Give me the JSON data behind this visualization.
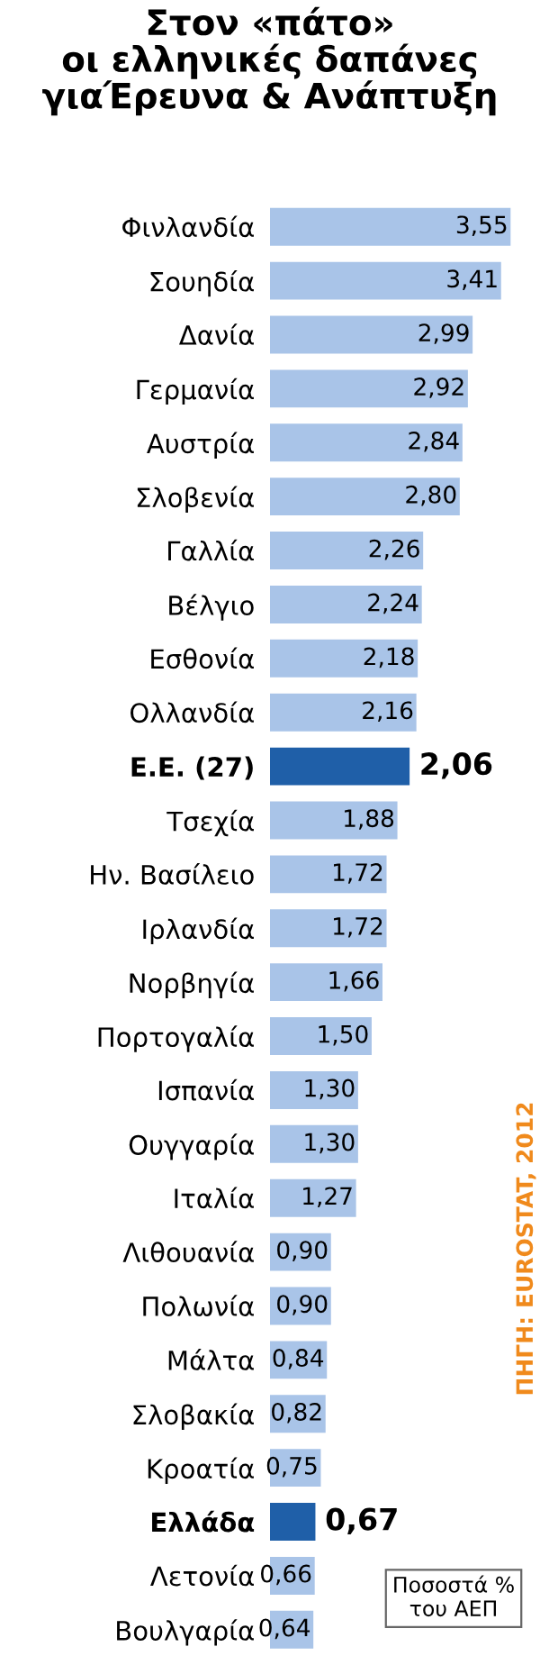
{
  "chart_data": {
    "type": "bar",
    "orientation": "horizontal",
    "title": "Στον «πάτο»\nοι ελληνικές δαπάνες\nγιαΈρευνα & Ανάπτυξη",
    "categories": [
      "Φινλανδία",
      "Σουηδία",
      "Δανία",
      "Γερμανία",
      "Αυστρία",
      "Σλοβενία",
      "Γαλλία",
      "Βέλγιο",
      "Εσθονία",
      "Ολλανδία",
      "Ε.Ε. (27)",
      "Τσεχία",
      "Ην. Βασίλειο",
      "Ιρλανδία",
      "Νορβηγία",
      "Πορτογαλία",
      "Ισπανία",
      "Ουγγαρία",
      "Ιταλία",
      "Λιθουανία",
      "Πολωνία",
      "Μάλτα",
      "Σλοβακία",
      "Κροατία",
      "Ελλάδα",
      "Λετονία",
      "Βουλγαρία"
    ],
    "values": [
      3.55,
      3.41,
      2.99,
      2.92,
      2.84,
      2.8,
      2.26,
      2.24,
      2.18,
      2.16,
      2.06,
      1.88,
      1.72,
      1.72,
      1.66,
      1.5,
      1.3,
      1.3,
      1.27,
      0.9,
      0.9,
      0.84,
      0.82,
      0.75,
      0.67,
      0.66,
      0.64
    ],
    "value_labels": [
      "3,55",
      "3,41",
      "2,99",
      "2,92",
      "2,84",
      "2,80",
      "2,26",
      "2,24",
      "2,18",
      "2,16",
      "2,06",
      "1,88",
      "1,72",
      "1,72",
      "1,66",
      "1,50",
      "1,30",
      "1,30",
      "1,27",
      "0,90",
      "0,90",
      "0,84",
      "0,82",
      "0,75",
      "0,67",
      "0,66",
      "0,64"
    ],
    "colors": [
      "#a9c4e8",
      "#a9c4e8",
      "#a9c4e8",
      "#a9c4e8",
      "#a9c4e8",
      "#a9c4e8",
      "#a9c4e8",
      "#a9c4e8",
      "#a9c4e8",
      "#a9c4e8",
      "#1f5fa8",
      "#a9c4e8",
      "#a9c4e8",
      "#a9c4e8",
      "#a9c4e8",
      "#a9c4e8",
      "#a9c4e8",
      "#a9c4e8",
      "#a9c4e8",
      "#a9c4e8",
      "#a9c4e8",
      "#a9c4e8",
      "#a9c4e8",
      "#a9c4e8",
      "#1f5fa8",
      "#a9c4e8",
      "#a9c4e8"
    ],
    "relative": false,
    "grid": false,
    "legend": false,
    "annotations": [
      "ΠΗΓΗ: EUROSTAT, 2012",
      "Ποσοστά %\nτου ΑΕΠ"
    ]
  }
}
